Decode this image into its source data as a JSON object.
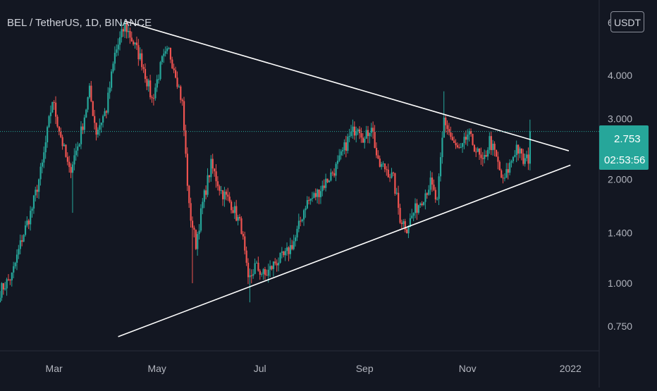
{
  "header": {
    "symbol_title": "BEL / TetherUS, 1D, BINANCE",
    "currency_button": "USDT",
    "partial_top_tick": "6"
  },
  "colors": {
    "background": "#131722",
    "up": "#26a69a",
    "down": "#ef5350",
    "trendline": "#ffffff",
    "last_price_line": "#26a69a",
    "axis_text": "#b2b5be"
  },
  "chart_data": {
    "type": "candlestick",
    "scale": "log",
    "title": "BEL / TetherUS, 1D, BINANCE",
    "x_ticks": [
      "Mar",
      "May",
      "Jul",
      "Sep",
      "Nov",
      "2022"
    ],
    "y_ticks": [
      "4.000",
      "3.000",
      "2.000",
      "1.400",
      "1.000",
      "0.750"
    ],
    "last_price": "2.753",
    "countdown": "02:53:56",
    "ylim": [
      0.68,
      6.2
    ],
    "xlim": [
      "2021-01-28",
      "2022-01-18"
    ],
    "trendlines": [
      {
        "name": "upper",
        "start": {
          "date": "2021-04-12",
          "price": 5.75
        },
        "end": {
          "date": "2021-12-31",
          "price": 2.42
        }
      },
      {
        "name": "lower",
        "start": {
          "date": "2021-04-08",
          "price": 0.7
        },
        "end": {
          "date": "2022-01-01",
          "price": 2.2
        }
      }
    ],
    "anchors": [
      [
        "2021-01-28",
        0.95
      ],
      [
        "2021-02-04",
        1.05
      ],
      [
        "2021-02-10",
        1.35
      ],
      [
        "2021-02-16",
        1.65
      ],
      [
        "2021-02-22",
        2.2
      ],
      [
        "2021-02-28",
        3.4
      ],
      [
        "2021-03-04",
        2.8
      ],
      [
        "2021-03-10",
        2.1
      ],
      [
        "2021-03-16",
        2.6
      ],
      [
        "2021-03-22",
        3.6
      ],
      [
        "2021-03-26",
        2.75
      ],
      [
        "2021-04-01",
        3.2
      ],
      [
        "2021-04-06",
        4.6
      ],
      [
        "2021-04-12",
        5.6
      ],
      [
        "2021-04-16",
        5.1
      ],
      [
        "2021-04-22",
        4.4
      ],
      [
        "2021-04-28",
        3.4
      ],
      [
        "2021-05-04",
        4.4
      ],
      [
        "2021-05-08",
        4.7
      ],
      [
        "2021-05-12",
        4.1
      ],
      [
        "2021-05-16",
        3.3
      ],
      [
        "2021-05-20",
        1.65
      ],
      [
        "2021-05-24",
        1.3
      ],
      [
        "2021-05-28",
        1.7
      ],
      [
        "2021-06-02",
        2.2
      ],
      [
        "2021-06-08",
        1.85
      ],
      [
        "2021-06-14",
        1.7
      ],
      [
        "2021-06-20",
        1.45
      ],
      [
        "2021-06-24",
        1.0
      ],
      [
        "2021-06-28",
        1.12
      ],
      [
        "2021-07-04",
        1.05
      ],
      [
        "2021-07-10",
        1.15
      ],
      [
        "2021-07-16",
        1.2
      ],
      [
        "2021-07-22",
        1.35
      ],
      [
        "2021-07-28",
        1.7
      ],
      [
        "2021-08-03",
        1.8
      ],
      [
        "2021-08-10",
        2.0
      ],
      [
        "2021-08-16",
        2.2
      ],
      [
        "2021-08-22",
        2.6
      ],
      [
        "2021-08-28",
        2.9
      ],
      [
        "2021-09-01",
        2.6
      ],
      [
        "2021-09-05",
        2.9
      ],
      [
        "2021-09-09",
        2.2
      ],
      [
        "2021-09-14",
        2.15
      ],
      [
        "2021-09-18",
        2.0
      ],
      [
        "2021-09-22",
        1.55
      ],
      [
        "2021-09-26",
        1.45
      ],
      [
        "2021-09-30",
        1.6
      ],
      [
        "2021-10-06",
        1.8
      ],
      [
        "2021-10-10",
        1.95
      ],
      [
        "2021-10-14",
        1.7
      ],
      [
        "2021-10-18",
        3.0
      ],
      [
        "2021-10-24",
        2.5
      ],
      [
        "2021-10-28",
        2.4
      ],
      [
        "2021-11-01",
        2.7
      ],
      [
        "2021-11-05",
        2.5
      ],
      [
        "2021-11-10",
        2.2
      ],
      [
        "2021-11-14",
        2.6
      ],
      [
        "2021-11-18",
        2.3
      ],
      [
        "2021-11-22",
        1.95
      ],
      [
        "2021-11-26",
        2.2
      ],
      [
        "2021-11-30",
        2.5
      ],
      [
        "2021-12-04",
        2.25
      ],
      [
        "2021-12-07",
        2.3
      ],
      [
        "2021-12-08",
        2.753
      ]
    ],
    "spikes": [
      {
        "date": "2021-03-12",
        "low": 1.6
      },
      {
        "date": "2021-05-22",
        "low": 1.0
      },
      {
        "date": "2021-06-25",
        "low": 0.88
      },
      {
        "date": "2021-10-18",
        "high": 3.6
      },
      {
        "date": "2021-12-08",
        "high": 2.98
      }
    ]
  }
}
